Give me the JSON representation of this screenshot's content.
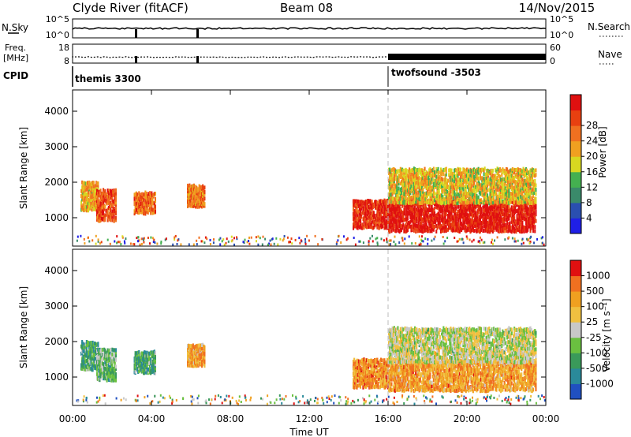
{
  "header": {
    "station": "Clyde River (fitACF)",
    "beam": "Beam 08",
    "date": "14/Nov/2015"
  },
  "status_panels": {
    "nsky_label": "N.Sky",
    "nsky_ticks": [
      "10^5",
      "10^0"
    ],
    "nsearch_label": "N.Search",
    "nsearch_ticks": [
      "10^5",
      "10^0"
    ],
    "freq_label_line1": "Freq.",
    "freq_label_line2": "[MHz]",
    "freq_ticks": [
      "18",
      "8"
    ],
    "nave_label": "Nave",
    "nave_ticks": [
      "60",
      "0"
    ],
    "cpid_label": "CPID",
    "programs": [
      {
        "name": "themis 3300",
        "start_hour": 0
      },
      {
        "name": "twofsound -3503",
        "start_hour": 16
      }
    ]
  },
  "chart_data": [
    {
      "type": "heatmap",
      "name": "power",
      "ylabel": "Slant Range [km]",
      "xlabel": "",
      "ylim": [
        200,
        4600
      ],
      "xlim": [
        0,
        24
      ],
      "yticks": [
        "1000",
        "2000",
        "3000",
        "4000"
      ],
      "colorbar": {
        "label": "Power [dB]",
        "ticks": [
          "4",
          "8",
          "12",
          "16",
          "20",
          "24",
          "28"
        ],
        "colors": [
          "#1f1fe6",
          "#2a4fb0",
          "#3a8a6a",
          "#44b050",
          "#d8d820",
          "#f0a020",
          "#f07020",
          "#e84010",
          "#e01010"
        ]
      },
      "echo_regions": [
        {
          "t0": 0.4,
          "t1": 1.3,
          "r0": 1200,
          "r1": 2000,
          "level": 0.6
        },
        {
          "t0": 1.2,
          "t1": 2.2,
          "r0": 900,
          "r1": 1800,
          "level": 0.8
        },
        {
          "t0": 3.1,
          "t1": 4.2,
          "r0": 1100,
          "r1": 1700,
          "level": 0.75
        },
        {
          "t0": 5.8,
          "t1": 6.7,
          "r0": 1300,
          "r1": 1900,
          "level": 0.7
        },
        {
          "t0": 14.2,
          "t1": 16.0,
          "r0": 700,
          "r1": 1500,
          "level": 0.9
        },
        {
          "t0": 16.0,
          "t1": 23.5,
          "r0": 600,
          "r1": 1500,
          "level": 0.95
        },
        {
          "t0": 16.0,
          "t1": 23.5,
          "r0": 1400,
          "r1": 2400,
          "level": 0.55
        }
      ]
    },
    {
      "type": "heatmap",
      "name": "velocity",
      "ylabel": "Slant Range [km]",
      "xlabel": "Time UT",
      "ylim": [
        200,
        4600
      ],
      "xlim": [
        0,
        24
      ],
      "yticks": [
        "1000",
        "2000",
        "3000",
        "4000"
      ],
      "xticks": [
        "00:00",
        "04:00",
        "08:00",
        "12:00",
        "16:00",
        "20:00",
        "00:00"
      ],
      "colorbar": {
        "label": "Velocity [m s⁻¹]",
        "ticks": [
          "1000",
          "500",
          "100",
          "25",
          "-25",
          "-100",
          "-500",
          "-1000"
        ],
        "colors": [
          "#2050c0",
          "#2a8a9a",
          "#3a9a5a",
          "#6ac040",
          "#c8c8c8",
          "#f0c040",
          "#f0a020",
          "#f07020",
          "#e01010"
        ]
      },
      "echo_regions": [
        {
          "t0": 0.4,
          "t1": 1.3,
          "r0": 1200,
          "r1": 2000,
          "level": 0.3
        },
        {
          "t0": 1.2,
          "t1": 2.2,
          "r0": 900,
          "r1": 1800,
          "level": 0.35
        },
        {
          "t0": 3.1,
          "t1": 4.2,
          "r0": 1100,
          "r1": 1700,
          "level": 0.3
        },
        {
          "t0": 5.8,
          "t1": 6.7,
          "r0": 1300,
          "r1": 1900,
          "level": 0.7
        },
        {
          "t0": 14.2,
          "t1": 16.0,
          "r0": 700,
          "r1": 1500,
          "level": 0.75
        },
        {
          "t0": 16.0,
          "t1": 23.5,
          "r0": 600,
          "r1": 1500,
          "level": 0.72
        },
        {
          "t0": 16.0,
          "t1": 23.5,
          "r0": 1400,
          "r1": 2400,
          "level": 0.5
        }
      ]
    }
  ]
}
